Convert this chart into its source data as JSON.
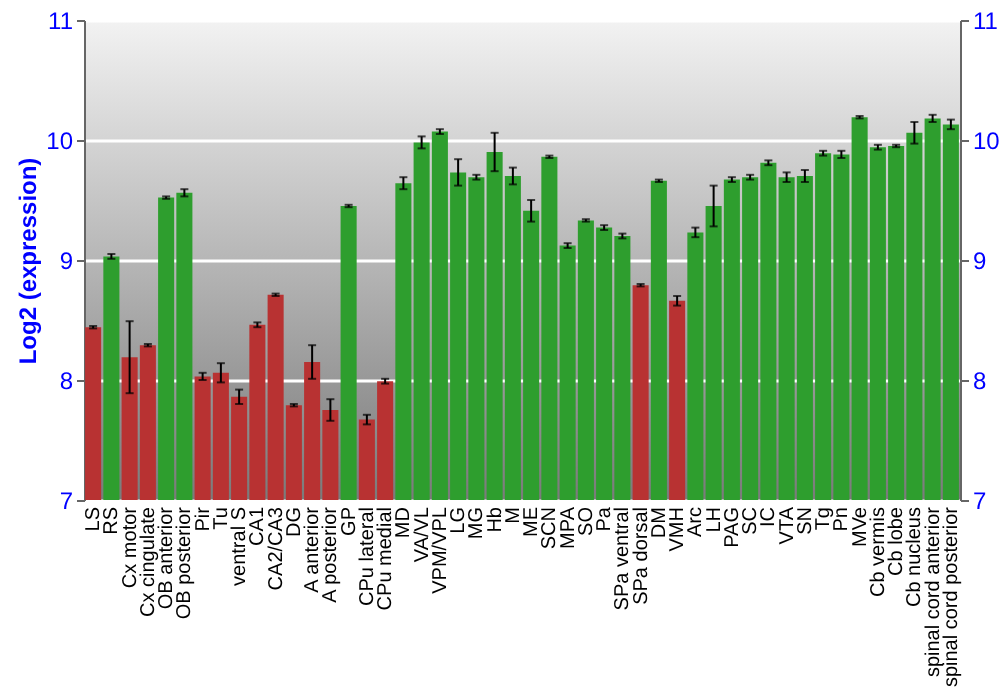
{
  "chart_data": {
    "type": "bar",
    "ylabel": "Log2 (expression)",
    "categories": [
      "LS",
      "RS",
      "Cx motor",
      "Cx cingulate",
      "OB anterior",
      "OB posterior",
      "Pir",
      "Tu",
      "ventral S",
      "CA1",
      "CA2/CA3",
      "DG",
      "A anterior",
      "A posterior",
      "GP",
      "CPu lateral",
      "CPu medial",
      "MD",
      "VA/VL",
      "VPM/VPL",
      "LG",
      "MG",
      "Hb",
      "M",
      "ME",
      "SCN",
      "MPA",
      "SO",
      "Pa",
      "SPa ventral",
      "SPa dorsal",
      "DM",
      "VMH",
      "Arc",
      "LH",
      "PAG",
      "SC",
      "IC",
      "VTA",
      "SN",
      "Tg",
      "Pn",
      "MVe",
      "Cb vermis",
      "Cb lobe",
      "Cb nucleus",
      "spinal cord anterior",
      "spinal cord posterior"
    ],
    "values": [
      8.44,
      9.03,
      8.19,
      8.29,
      9.52,
      9.56,
      8.03,
      8.06,
      7.86,
      8.46,
      8.71,
      7.79,
      8.15,
      7.75,
      9.45,
      7.67,
      7.99,
      9.64,
      9.98,
      10.07,
      9.73,
      9.69,
      9.9,
      9.7,
      9.41,
      9.86,
      9.12,
      9.33,
      9.27,
      9.2,
      8.79,
      9.66,
      8.66,
      9.23,
      9.45,
      9.67,
      9.69,
      9.81,
      9.69,
      9.7,
      9.89,
      9.88,
      10.19,
      9.94,
      9.95,
      10.06,
      10.18,
      10.13
    ],
    "errors": [
      0.01,
      0.02,
      0.3,
      0.01,
      0.01,
      0.03,
      0.03,
      0.08,
      0.06,
      0.02,
      0.01,
      0.01,
      0.14,
      0.09,
      0.01,
      0.04,
      0.02,
      0.05,
      0.05,
      0.02,
      0.11,
      0.02,
      0.16,
      0.07,
      0.09,
      0.01,
      0.02,
      0.01,
      0.02,
      0.02,
      0.01,
      0.01,
      0.04,
      0.04,
      0.17,
      0.02,
      0.02,
      0.02,
      0.04,
      0.05,
      0.02,
      0.03,
      0.01,
      0.02,
      0.01,
      0.09,
      0.03,
      0.04
    ],
    "colors": [
      "#b83232",
      "#2e9e2e",
      "#b83232",
      "#b83232",
      "#2e9e2e",
      "#2e9e2e",
      "#b83232",
      "#b83232",
      "#b83232",
      "#b83232",
      "#b83232",
      "#b83232",
      "#b83232",
      "#b83232",
      "#2e9e2e",
      "#b83232",
      "#b83232",
      "#2e9e2e",
      "#2e9e2e",
      "#2e9e2e",
      "#2e9e2e",
      "#2e9e2e",
      "#2e9e2e",
      "#2e9e2e",
      "#2e9e2e",
      "#2e9e2e",
      "#2e9e2e",
      "#2e9e2e",
      "#2e9e2e",
      "#2e9e2e",
      "#b83232",
      "#2e9e2e",
      "#b83232",
      "#2e9e2e",
      "#2e9e2e",
      "#2e9e2e",
      "#2e9e2e",
      "#2e9e2e",
      "#2e9e2e",
      "#2e9e2e",
      "#2e9e2e",
      "#2e9e2e",
      "#2e9e2e",
      "#2e9e2e",
      "#2e9e2e",
      "#2e9e2e",
      "#2e9e2e",
      "#2e9e2e"
    ],
    "ylim": [
      7,
      11
    ],
    "yticks": [
      7,
      8,
      9,
      10,
      11
    ],
    "y2lim": [
      7,
      11
    ],
    "y2ticks": [
      7,
      8,
      9,
      10,
      11
    ],
    "grid": "y"
  }
}
